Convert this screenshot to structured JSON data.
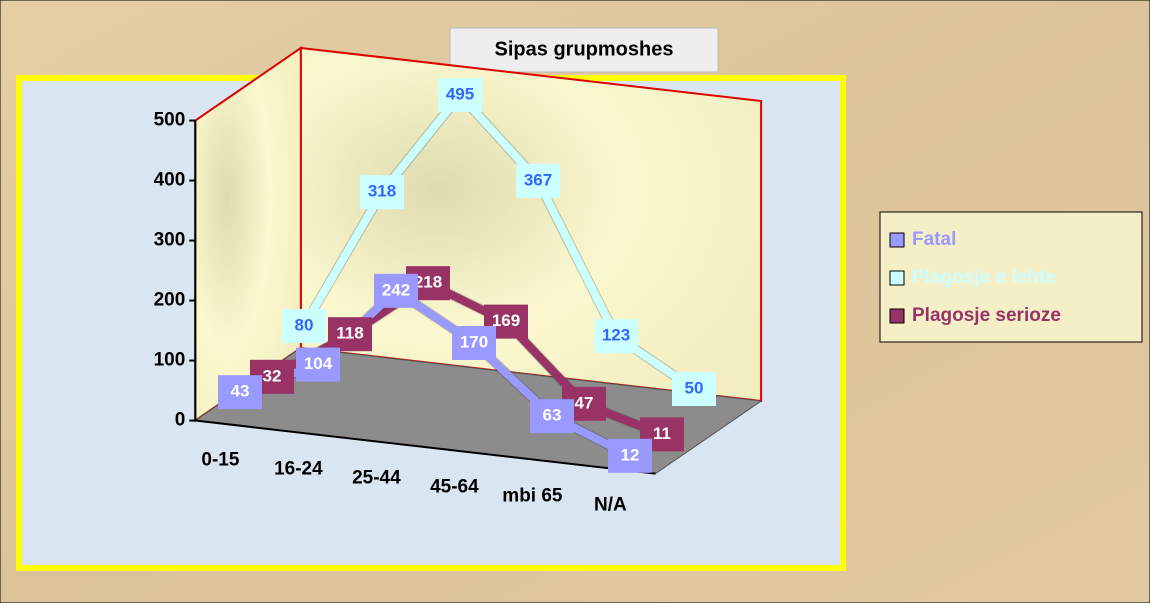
{
  "chart_data": {
    "type": "line3d",
    "title": "Sipas grupmoshes",
    "categories": [
      "0-15",
      "16-24",
      "25-44",
      "45-64",
      "mbi 65",
      "N/A"
    ],
    "series": [
      {
        "name": "Fatal",
        "color": "#9999ff",
        "label_color": "#ffffff",
        "values": [
          43,
          104,
          242,
          170,
          63,
          12
        ]
      },
      {
        "name": "Plagosje e lehte",
        "color": "#ccffff",
        "label_color": "#3366ff",
        "values": [
          80,
          318,
          495,
          367,
          123,
          50
        ]
      },
      {
        "name": "Plagosje serioze",
        "color": "#993366",
        "label_color": "#ffffff",
        "values": [
          32,
          118,
          218,
          169,
          47,
          11
        ]
      }
    ],
    "depth_order": [
      0,
      2,
      1
    ],
    "ylim": [
      0,
      500
    ],
    "yticks": [
      0,
      100,
      200,
      300,
      400,
      500
    ],
    "legend": "right"
  }
}
